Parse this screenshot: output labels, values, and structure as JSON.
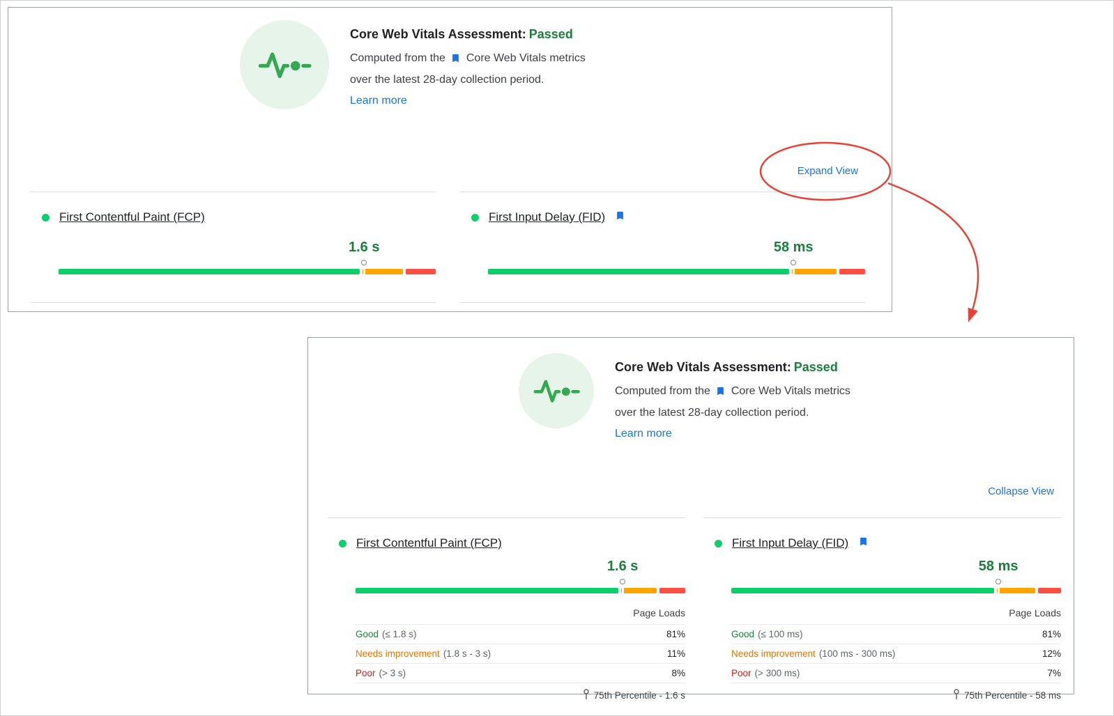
{
  "colors": {
    "link_blue": "#1a73e8",
    "passed_green": "#188038",
    "bar_good": "#0cce6b",
    "bar_needs_improvement": "#ffa400",
    "bar_poor": "#ff4e42",
    "label_good": "#188038",
    "label_needs_improvement": "#e37400",
    "label_poor": "#c5221f",
    "annotation_red": "#e94235"
  },
  "header": {
    "icon": "core-web-vitals-pulse-icon",
    "title": "Core Web Vitals Assessment:",
    "status": "Passed",
    "desc_before": "Computed from the",
    "desc_metrics": "Core Web Vitals metrics",
    "desc_after": "over the latest 28-day collection period.",
    "learn_more": "Learn more"
  },
  "collapsed_panel": {
    "toggle_label": "Expand View"
  },
  "expanded_panel": {
    "toggle_label": "Collapse View",
    "page_loads_label": "Page Loads"
  },
  "metrics": {
    "fcp": {
      "name": "First Contentful Paint (FCP)",
      "value": "1.6 s",
      "good_pct": 81,
      "ni_pct": 11,
      "poor_pct": 8,
      "rows": [
        {
          "label": "Good",
          "range": "(≤ 1.8 s)",
          "pct": "81%"
        },
        {
          "label": "Needs improvement",
          "range": "(1.8 s - 3 s)",
          "pct": "11%"
        },
        {
          "label": "Poor",
          "range": "(> 3 s)",
          "pct": "8%"
        }
      ],
      "percentile": "75th Percentile - 1.6 s"
    },
    "fid": {
      "name": "First Input Delay (FID)",
      "value": "58 ms",
      "good_pct": 81,
      "ni_pct": 12,
      "poor_pct": 7,
      "rows": [
        {
          "label": "Good",
          "range": "(≤ 100 ms)",
          "pct": "81%"
        },
        {
          "label": "Needs improvement",
          "range": "(100 ms - 300 ms)",
          "pct": "12%"
        },
        {
          "label": "Poor",
          "range": "(> 300 ms)",
          "pct": "7%"
        }
      ],
      "percentile": "75th Percentile - 58 ms"
    }
  }
}
